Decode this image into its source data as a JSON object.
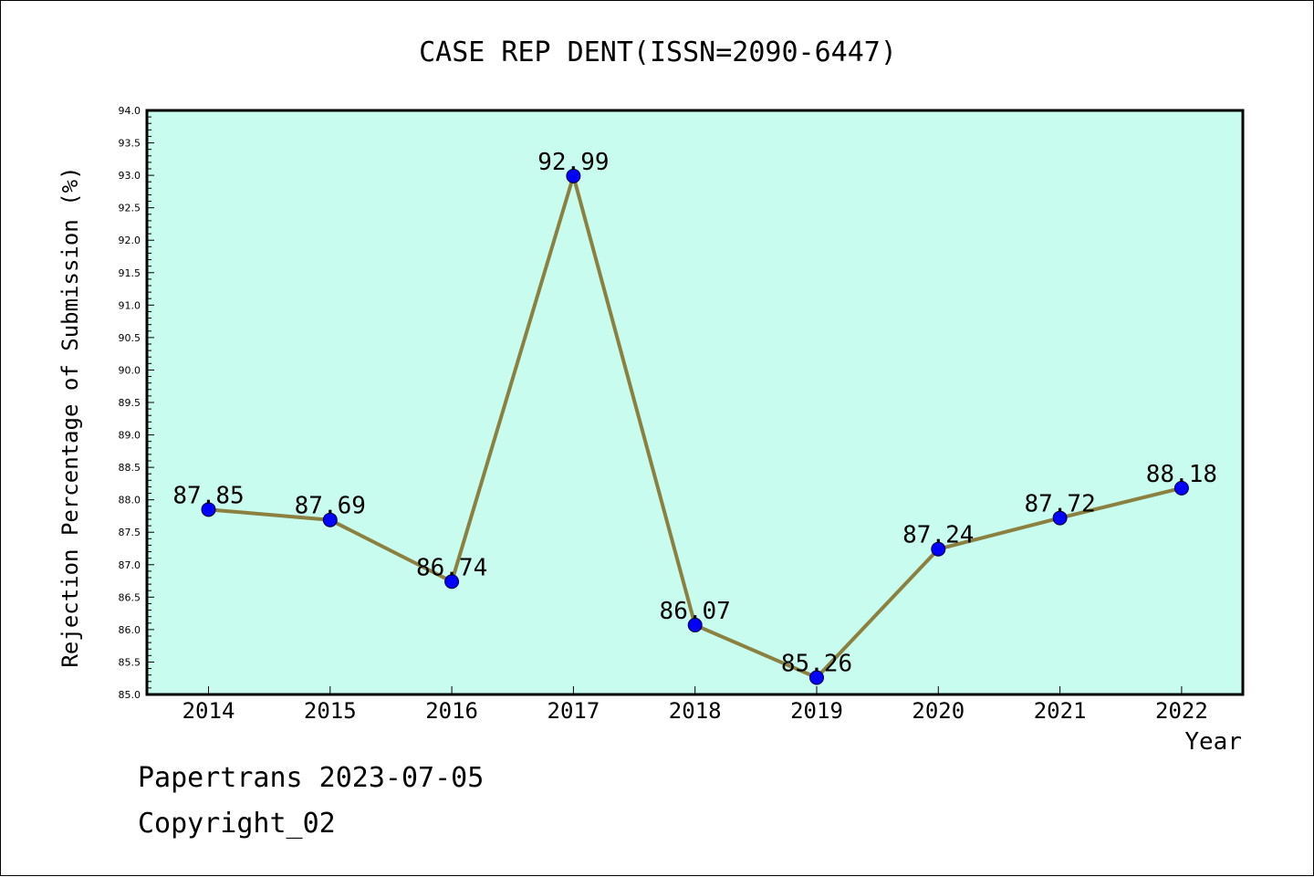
{
  "chart_data": {
    "type": "line",
    "title": "CASE REP DENT(ISSN=2090-6447)",
    "xlabel": "Year",
    "ylabel": "Rejection Percentage of Submission (%)",
    "categories": [
      "2014",
      "2015",
      "2016",
      "2017",
      "2018",
      "2019",
      "2020",
      "2021",
      "2022"
    ],
    "series": [
      {
        "values": [
          87.85,
          87.69,
          86.74,
          92.99,
          86.07,
          85.26,
          87.24,
          87.72,
          88.18
        ]
      }
    ],
    "data_labels": [
      "87.85",
      "87.69",
      "86.74",
      "92.99",
      "86.07",
      "85.26",
      "87.24",
      "87.72",
      "88.18"
    ],
    "ylim": [
      85.0,
      94.0
    ],
    "y_major_step": 0.5,
    "y_tick_labels": [
      "85.0",
      "85.5",
      "86.0",
      "86.5",
      "87.0",
      "87.5",
      "88.0",
      "88.5",
      "89.0",
      "89.5",
      "90.0",
      "90.5",
      "91.0",
      "91.5",
      "92.0",
      "92.5",
      "93.0",
      "93.5",
      "94.0"
    ],
    "grid": false,
    "legend": "none",
    "colors": {
      "plot_background": "#c8fcee",
      "line": "#8b8040",
      "marker": "#0000ff",
      "axis": "#000000"
    }
  },
  "footer": {
    "line1": "Papertrans 2023-07-05",
    "line2": "Copyright_02"
  }
}
